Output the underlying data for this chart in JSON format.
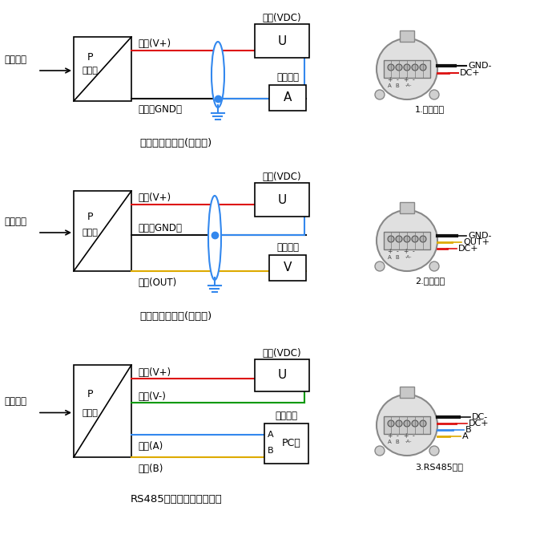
{
  "bg_color": "#ffffff",
  "diagram1_title": "电流输出接线图(两线制)",
  "diagram2_title": "电压输出接线图(三线制)",
  "diagram3_title": "RS485数字信号输出接线图",
  "red": "#dd1111",
  "black": "#111111",
  "blue": "#3388ee",
  "yellow": "#ddaa00",
  "green": "#009900",
  "label1_gnd": "GND-",
  "label1_dc": "DC+",
  "label1_num": "1.电流输出",
  "label2_gnd": "GND-",
  "label2_out": "OUT+",
  "label2_dc": "DC+",
  "label2_num": "2.电压输出",
  "label3_dcm": "DC-",
  "label3_dcp": "DC+",
  "label3_b": "B",
  "label3_a": "A",
  "label3_num": "3.RS485输出",
  "liq_label": "液位输入",
  "trans_p": "P",
  "trans_name": "变送器",
  "power_label": "电源(VDC)",
  "collect_label": "采集设备",
  "wire1_red": "红线(V+)",
  "wire1_black": "黑线（GND）",
  "wire2_red": "红线(V+)",
  "wire2_black": "黑线（GND）",
  "wire2_yellow": "黄线(OUT)",
  "wire3_red": "红线(V+)",
  "wire3_green": "绿线(V-)",
  "wire3_blue": "蓝线(A)",
  "wire3_yellow": "黄线(B)"
}
